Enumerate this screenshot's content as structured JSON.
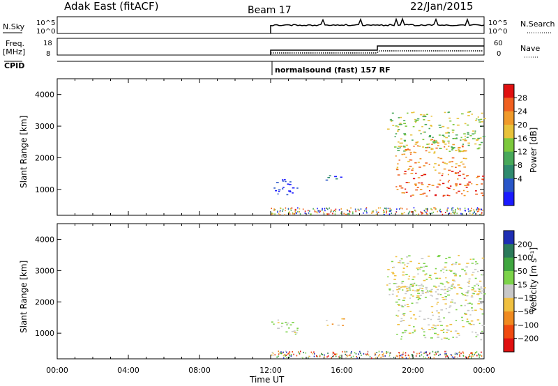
{
  "header": {
    "station": "Adak East (fitACF)",
    "beam": "Beam 17",
    "date": "22/Jan/2015"
  },
  "top_panels": {
    "nsky_label": "N.Sky",
    "nsky_ticks": [
      "10^5",
      "10^0"
    ],
    "nsearch_label": "N.Search",
    "nsearch_ticks": [
      "10^5",
      "10^0"
    ],
    "freq_label": "Freq.",
    "freq_unit": "[MHz]",
    "freq_ticks": [
      "18",
      "8"
    ],
    "nave_label": "Nave",
    "nave_ticks": [
      "60",
      "0"
    ],
    "cpid_label": "CPID",
    "cpid_text": "normalsound (fast) 157 RF"
  },
  "colors": {
    "power_bins": [
      "#1a1aff",
      "#2956c8",
      "#2f8a6e",
      "#48a85a",
      "#7cc83c",
      "#e8c23a",
      "#f09a2a",
      "#f06020",
      "#e01010"
    ],
    "velocity_bins": [
      "#e01010",
      "#f04a10",
      "#f08a20",
      "#f0c040",
      "#c8c8c8",
      "#7cd34a",
      "#3fa63f",
      "#2b7a5a",
      "#1e2eb4"
    ]
  },
  "chart_data": [
    {
      "type": "heatmap",
      "name": "power-panel",
      "ylabel": "Slant Range [km]",
      "y_ticks": [
        1000,
        2000,
        3000,
        4000
      ],
      "ylim": [
        180,
        4500
      ],
      "xlim": [
        0,
        24
      ],
      "x_ticks": [
        "00:00",
        "04:00",
        "08:00",
        "12:00",
        "16:00",
        "20:00",
        "00:00"
      ],
      "colorbar": {
        "label": "Power [dB]",
        "ticks": [
          "28",
          "24",
          "20",
          "16",
          "12",
          "8",
          "4"
        ]
      },
      "data_start_hour": 12,
      "regions": [
        {
          "t0": 12.0,
          "t1": 13.5,
          "r0": 800,
          "r1": 1350,
          "band": 0
        },
        {
          "t0": 15.0,
          "t1": 16.0,
          "r0": 1250,
          "r1": 1500,
          "band": 1
        },
        {
          "t0": 19.0,
          "t1": 24.0,
          "r0": 800,
          "r1": 1600,
          "band": 7
        },
        {
          "t0": 19.0,
          "t1": 23.0,
          "r0": 1600,
          "r1": 2600,
          "band": 6
        },
        {
          "t0": 18.5,
          "t1": 24.0,
          "r0": 2200,
          "r1": 3500,
          "band": 4
        }
      ]
    },
    {
      "type": "heatmap",
      "name": "velocity-panel",
      "ylabel": "Slant Range [km]",
      "y_ticks": [
        1000,
        2000,
        3000,
        4000
      ],
      "ylim": [
        180,
        4500
      ],
      "xlim": [
        0,
        24
      ],
      "x_ticks": [
        "00:00",
        "04:00",
        "08:00",
        "12:00",
        "16:00",
        "20:00",
        "00:00"
      ],
      "xlabel": "Time UT",
      "colorbar": {
        "label": "Velocity [m s⁻¹]",
        "ticks": [
          "200",
          "100",
          "50",
          "15",
          "−15",
          "−50",
          "−100",
          "−200"
        ]
      },
      "data_start_hour": 12,
      "regions": [
        {
          "t0": 12.0,
          "t1": 13.5,
          "r0": 900,
          "r1": 1450,
          "band": 4
        },
        {
          "t0": 15.0,
          "t1": 16.2,
          "r0": 1250,
          "r1": 1500,
          "band": 3
        },
        {
          "t0": 19.0,
          "t1": 24.0,
          "r0": 800,
          "r1": 2600,
          "band": 4
        },
        {
          "t0": 18.5,
          "t1": 24.0,
          "r0": 2200,
          "r1": 3500,
          "band": 4
        }
      ]
    }
  ]
}
